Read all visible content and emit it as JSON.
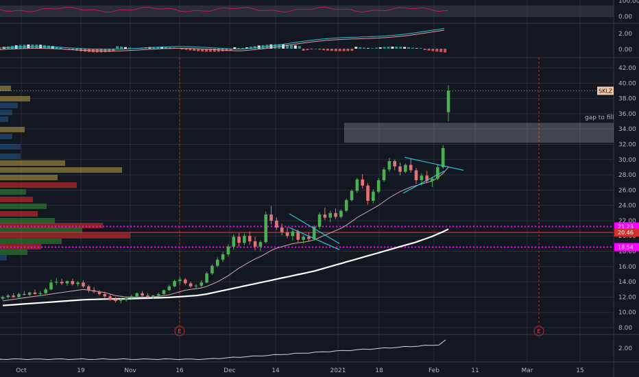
{
  "chart_data": {
    "type": "candlestick",
    "symbol": "SKLZ",
    "x_tick_labels": [
      "Oct",
      "19",
      "Nov",
      "16",
      "Dec",
      "14",
      "2021",
      "18",
      "Feb",
      "11",
      "Mar",
      "15"
    ],
    "price_axis": {
      "ticks": [
        8,
        10,
        12,
        14,
        16,
        18,
        20,
        22,
        24,
        26,
        28,
        30,
        32,
        34,
        36,
        38,
        40,
        42
      ],
      "ylim": [
        7.5,
        43
      ]
    },
    "rsi_axis": {
      "ticks": [
        "100.00",
        "0.00"
      ]
    },
    "macd_axis": {
      "ticks": [
        "2.00",
        "0.00"
      ]
    },
    "volume_axis": {
      "ticks": [
        "2.00"
      ]
    },
    "price_labels": [
      {
        "text": "SKLZ",
        "value": 39.0,
        "color": "#f5c6a8"
      },
      {
        "text": "21.23",
        "value": 21.23,
        "color": "#ff00ff"
      },
      {
        "text": "20.46",
        "value": 20.46,
        "color": "#d32f2f"
      },
      {
        "text": "18.54",
        "value": 18.54,
        "color": "#ff00ff"
      }
    ],
    "annotation": {
      "text": "gap to fill",
      "low": 32.2,
      "high": 34.8
    },
    "horizontal_levels": [
      {
        "value": 21.23,
        "color": "#ff00ff",
        "style": "dotted"
      },
      {
        "value": 20.46,
        "color": "#d32f2f",
        "style": "solid"
      },
      {
        "value": 18.54,
        "color": "#ff00ff",
        "style": "dotted"
      }
    ],
    "earnings_markers": [
      "E",
      "E"
    ],
    "candles": [
      {
        "o": 11.8,
        "h": 12.2,
        "l": 11.6,
        "c": 12.0
      },
      {
        "o": 12.0,
        "h": 12.4,
        "l": 11.8,
        "c": 12.2
      },
      {
        "o": 12.2,
        "h": 12.5,
        "l": 11.9,
        "c": 12.0
      },
      {
        "o": 12.0,
        "h": 12.6,
        "l": 11.9,
        "c": 12.4
      },
      {
        "o": 12.4,
        "h": 12.8,
        "l": 12.2,
        "c": 12.3
      },
      {
        "o": 12.3,
        "h": 12.7,
        "l": 12.1,
        "c": 12.6
      },
      {
        "o": 12.6,
        "h": 13.0,
        "l": 12.3,
        "c": 12.4
      },
      {
        "o": 12.4,
        "h": 12.8,
        "l": 12.1,
        "c": 12.5
      },
      {
        "o": 12.5,
        "h": 13.2,
        "l": 12.4,
        "c": 13.0
      },
      {
        "o": 13.0,
        "h": 14.3,
        "l": 12.9,
        "c": 13.9
      },
      {
        "o": 13.9,
        "h": 14.5,
        "l": 13.6,
        "c": 14.0
      },
      {
        "o": 14.0,
        "h": 14.4,
        "l": 13.6,
        "c": 13.8
      },
      {
        "o": 13.8,
        "h": 14.2,
        "l": 13.5,
        "c": 14.1
      },
      {
        "o": 14.1,
        "h": 14.4,
        "l": 13.5,
        "c": 13.7
      },
      {
        "o": 13.7,
        "h": 14.1,
        "l": 13.4,
        "c": 13.9
      },
      {
        "o": 13.9,
        "h": 14.2,
        "l": 13.2,
        "c": 13.4
      },
      {
        "o": 13.4,
        "h": 13.6,
        "l": 12.6,
        "c": 12.9
      },
      {
        "o": 12.9,
        "h": 13.3,
        "l": 12.5,
        "c": 12.7
      },
      {
        "o": 12.7,
        "h": 12.9,
        "l": 12.2,
        "c": 12.4
      },
      {
        "o": 12.4,
        "h": 12.7,
        "l": 11.9,
        "c": 12.1
      },
      {
        "o": 12.1,
        "h": 12.4,
        "l": 11.5,
        "c": 11.7
      },
      {
        "o": 11.7,
        "h": 12.0,
        "l": 11.3,
        "c": 11.5
      },
      {
        "o": 11.5,
        "h": 11.9,
        "l": 11.2,
        "c": 11.6
      },
      {
        "o": 11.6,
        "h": 12.1,
        "l": 11.4,
        "c": 11.9
      },
      {
        "o": 11.9,
        "h": 12.3,
        "l": 11.6,
        "c": 12.1
      },
      {
        "o": 12.1,
        "h": 12.6,
        "l": 11.9,
        "c": 12.5
      },
      {
        "o": 12.5,
        "h": 12.8,
        "l": 12.0,
        "c": 12.2
      },
      {
        "o": 12.2,
        "h": 12.5,
        "l": 11.9,
        "c": 12.0
      },
      {
        "o": 12.0,
        "h": 12.3,
        "l": 11.8,
        "c": 12.2
      },
      {
        "o": 12.2,
        "h": 12.6,
        "l": 12.0,
        "c": 12.4
      },
      {
        "o": 12.4,
        "h": 13.0,
        "l": 12.3,
        "c": 12.9
      },
      {
        "o": 12.9,
        "h": 13.6,
        "l": 12.8,
        "c": 13.4
      },
      {
        "o": 13.4,
        "h": 14.3,
        "l": 13.3,
        "c": 14.1
      },
      {
        "o": 14.1,
        "h": 14.6,
        "l": 13.7,
        "c": 14.3
      },
      {
        "o": 14.3,
        "h": 14.5,
        "l": 13.6,
        "c": 13.8
      },
      {
        "o": 13.8,
        "h": 14.0,
        "l": 13.2,
        "c": 13.4
      },
      {
        "o": 13.4,
        "h": 13.7,
        "l": 13.0,
        "c": 13.5
      },
      {
        "o": 13.5,
        "h": 14.2,
        "l": 13.3,
        "c": 13.9
      },
      {
        "o": 13.9,
        "h": 15.3,
        "l": 13.8,
        "c": 15.1
      },
      {
        "o": 15.1,
        "h": 16.3,
        "l": 14.9,
        "c": 16.1
      },
      {
        "o": 16.1,
        "h": 17.2,
        "l": 15.9,
        "c": 16.9
      },
      {
        "o": 16.9,
        "h": 17.9,
        "l": 16.6,
        "c": 17.6
      },
      {
        "o": 17.6,
        "h": 18.9,
        "l": 17.3,
        "c": 18.6
      },
      {
        "o": 18.6,
        "h": 20.2,
        "l": 18.2,
        "c": 19.9
      },
      {
        "o": 19.9,
        "h": 20.4,
        "l": 18.6,
        "c": 19.1
      },
      {
        "o": 19.1,
        "h": 20.3,
        "l": 18.8,
        "c": 20.0
      },
      {
        "o": 20.0,
        "h": 20.6,
        "l": 18.9,
        "c": 19.3
      },
      {
        "o": 19.3,
        "h": 19.9,
        "l": 18.1,
        "c": 18.6
      },
      {
        "o": 18.6,
        "h": 19.4,
        "l": 18.0,
        "c": 19.2
      },
      {
        "o": 19.2,
        "h": 23.2,
        "l": 19.0,
        "c": 22.8
      },
      {
        "o": 22.8,
        "h": 23.9,
        "l": 21.5,
        "c": 22.0
      },
      {
        "o": 22.0,
        "h": 22.4,
        "l": 20.8,
        "c": 21.1
      },
      {
        "o": 21.1,
        "h": 21.6,
        "l": 20.1,
        "c": 20.5
      },
      {
        "o": 20.5,
        "h": 21.2,
        "l": 19.7,
        "c": 20.0
      },
      {
        "o": 20.0,
        "h": 20.9,
        "l": 19.4,
        "c": 20.6
      },
      {
        "o": 20.6,
        "h": 20.8,
        "l": 19.2,
        "c": 19.5
      },
      {
        "o": 19.5,
        "h": 20.1,
        "l": 19.0,
        "c": 19.9
      },
      {
        "o": 19.9,
        "h": 20.5,
        "l": 19.3,
        "c": 19.6
      },
      {
        "o": 19.6,
        "h": 21.4,
        "l": 19.4,
        "c": 21.2
      },
      {
        "o": 21.2,
        "h": 23.1,
        "l": 20.9,
        "c": 22.8
      },
      {
        "o": 22.8,
        "h": 23.7,
        "l": 22.1,
        "c": 22.4
      },
      {
        "o": 22.4,
        "h": 23.3,
        "l": 21.8,
        "c": 23.0
      },
      {
        "o": 23.0,
        "h": 23.6,
        "l": 22.2,
        "c": 22.5
      },
      {
        "o": 22.5,
        "h": 23.5,
        "l": 22.3,
        "c": 23.3
      },
      {
        "o": 23.3,
        "h": 24.9,
        "l": 23.1,
        "c": 24.7
      },
      {
        "o": 24.7,
        "h": 26.1,
        "l": 24.5,
        "c": 25.9
      },
      {
        "o": 25.9,
        "h": 27.6,
        "l": 25.6,
        "c": 27.4
      },
      {
        "o": 27.4,
        "h": 28.1,
        "l": 26.2,
        "c": 26.6
      },
      {
        "o": 26.6,
        "h": 26.9,
        "l": 24.1,
        "c": 24.6
      },
      {
        "o": 24.6,
        "h": 26.1,
        "l": 24.3,
        "c": 25.8
      },
      {
        "o": 25.8,
        "h": 27.6,
        "l": 25.6,
        "c": 27.3
      },
      {
        "o": 27.3,
        "h": 29.0,
        "l": 27.1,
        "c": 28.7
      },
      {
        "o": 28.7,
        "h": 30.2,
        "l": 28.4,
        "c": 29.8
      },
      {
        "o": 29.8,
        "h": 30.0,
        "l": 28.6,
        "c": 29.1
      },
      {
        "o": 29.1,
        "h": 29.6,
        "l": 27.9,
        "c": 28.4
      },
      {
        "o": 28.4,
        "h": 29.5,
        "l": 28.2,
        "c": 29.3
      },
      {
        "o": 29.3,
        "h": 30.1,
        "l": 28.3,
        "c": 28.6
      },
      {
        "o": 28.6,
        "h": 28.9,
        "l": 26.8,
        "c": 27.3
      },
      {
        "o": 27.3,
        "h": 28.2,
        "l": 26.6,
        "c": 27.9
      },
      {
        "o": 27.9,
        "h": 28.5,
        "l": 26.9,
        "c": 27.2
      },
      {
        "o": 27.2,
        "h": 27.7,
        "l": 26.4,
        "c": 27.5
      },
      {
        "o": 27.5,
        "h": 29.3,
        "l": 27.3,
        "c": 29.0
      },
      {
        "o": 29.0,
        "h": 31.9,
        "l": 28.8,
        "c": 31.5
      },
      {
        "o": 36.2,
        "h": 39.7,
        "l": 35.0,
        "c": 39.0
      }
    ],
    "sma_fast": [
      11.5,
      11.6,
      11.7,
      11.8,
      11.9,
      12.0,
      12.1,
      12.2,
      12.3,
      12.4,
      12.5,
      12.6,
      12.7,
      12.8,
      12.9,
      13.0,
      12.9,
      12.8,
      12.7,
      12.6,
      12.4,
      12.2,
      12.1,
      12.0,
      12.0,
      12.0,
      12.0,
      12.0,
      12.0,
      12.1,
      12.2,
      12.3,
      12.5,
      12.7,
      12.9,
      13.0,
      13.1,
      13.2,
      13.4,
      13.7,
      14.0,
      14.4,
      14.8,
      15.3,
      15.8,
      16.2,
      16.6,
      17.0,
      17.3,
      17.7,
      18.1,
      18.4,
      18.6,
      18.8,
      19.0,
      19.1,
      19.2,
      19.3,
      19.5,
      19.8,
      20.1,
      20.4,
      20.7,
      21.0,
      21.4,
      21.9,
      22.4,
      22.8,
      23.2,
      23.6,
      24.0,
      24.5,
      25.0,
      25.4,
      25.8,
      26.1,
      26.4,
      26.6,
      26.8,
      27.0,
      27.2,
      27.6,
      28.2,
      29.0
    ],
    "sma_slow": [
      10.9,
      10.95,
      11.0,
      11.05,
      11.1,
      11.15,
      11.2,
      11.25,
      11.3,
      11.35,
      11.4,
      11.45,
      11.5,
      11.55,
      11.6,
      11.65,
      11.68,
      11.7,
      11.72,
      11.74,
      11.75,
      11.76,
      11.77,
      11.78,
      11.8,
      11.82,
      11.84,
      11.86,
      11.88,
      11.9,
      11.93,
      11.96,
      12.0,
      12.05,
      12.1,
      12.15,
      12.2,
      12.3,
      12.4,
      12.55,
      12.7,
      12.85,
      13.0,
      13.15,
      13.3,
      13.45,
      13.6,
      13.75,
      13.9,
      14.05,
      14.2,
      14.35,
      14.5,
      14.65,
      14.8,
      14.95,
      15.1,
      15.25,
      15.4,
      15.6,
      15.8,
      16.0,
      16.2,
      16.4,
      16.6,
      16.8,
      17.0,
      17.2,
      17.4,
      17.6,
      17.8,
      18.0,
      18.2,
      18.4,
      18.6,
      18.8,
      19.0,
      19.2,
      19.45,
      19.7,
      19.95,
      20.25,
      20.55,
      20.9
    ]
  }
}
